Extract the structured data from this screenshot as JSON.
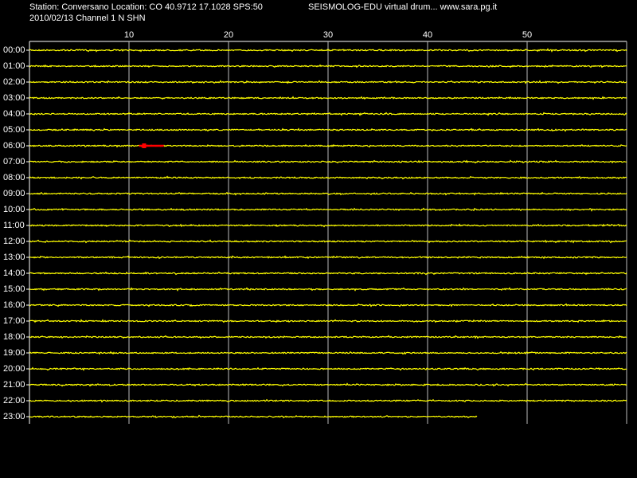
{
  "header": {
    "station": "Station: Conversano Location: CO 40.9712 17.1028 SPS:50",
    "date_channel": "2010/02/13  Channel 1 N SHN",
    "title": "SEISMOLOG-EDU virtual drum... www.sara.pg.it"
  },
  "time_axis": {
    "xlim": [
      0,
      60
    ],
    "xticks": [
      10,
      20,
      30,
      40,
      50
    ]
  },
  "hours": [
    "00:00",
    "01:00",
    "02:00",
    "03:00",
    "04:00",
    "05:00",
    "06:00",
    "07:00",
    "08:00",
    "09:00",
    "10:00",
    "11:00",
    "12:00",
    "13:00",
    "14:00",
    "15:00",
    "16:00",
    "17:00",
    "18:00",
    "19:00",
    "20:00",
    "21:00",
    "22:00",
    "23:00"
  ],
  "traces": {
    "color": "#ffff00",
    "last_end_minute": 45,
    "event": {
      "hour_index": 6,
      "start_minute": 11,
      "end_minute": 13.5,
      "color": "#ff0000"
    }
  }
}
